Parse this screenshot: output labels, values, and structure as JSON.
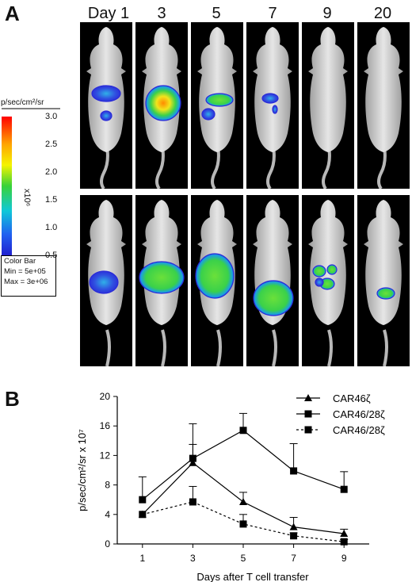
{
  "panelA": {
    "letter": "A",
    "days": [
      "Day 1",
      "3",
      "5",
      "7",
      "9",
      "20"
    ]
  },
  "colorbar": {
    "units": "p/sec/cm²/sr",
    "ticks": [
      "3.0",
      "2.5",
      "2.0",
      "1.5",
      "1.0",
      "0.5"
    ],
    "multiplier": "x10⁶",
    "box_title": "Color Bar",
    "box_min": "Min = 5e+05",
    "box_max": "Max = 3e+06"
  },
  "panelB": {
    "letter": "B"
  },
  "chart_data": {
    "type": "line",
    "xlabel": "Days after T cell transfer",
    "ylabel": "p/sec/cm²/sr x 10⁷",
    "x": [
      1,
      3,
      5,
      7,
      9
    ],
    "xlim": [
      0,
      10
    ],
    "ylim": [
      0,
      20
    ],
    "yticks": [
      0,
      4,
      8,
      12,
      16,
      20
    ],
    "grid": false,
    "legend_position": "top-right",
    "series": [
      {
        "name": "CAR46ζ",
        "marker": "triangle",
        "line": "solid",
        "values": [
          4.0,
          11.0,
          5.7,
          2.3,
          1.4
        ],
        "error": [
          0,
          2.5,
          1.3,
          1.3,
          0.6
        ]
      },
      {
        "name": "CAR46/28ζ",
        "marker": "square",
        "line": "solid",
        "values": [
          6.0,
          11.6,
          15.4,
          9.9,
          7.4
        ],
        "error": [
          3.1,
          4.7,
          2.3,
          3.7,
          2.4
        ]
      },
      {
        "name": "CAR46/28ζ",
        "marker": "square",
        "line": "dotted",
        "values": [
          4.0,
          5.7,
          2.7,
          1.1,
          0.3
        ],
        "error": [
          0,
          2.1,
          1.3,
          0.4,
          0.3
        ]
      }
    ]
  }
}
